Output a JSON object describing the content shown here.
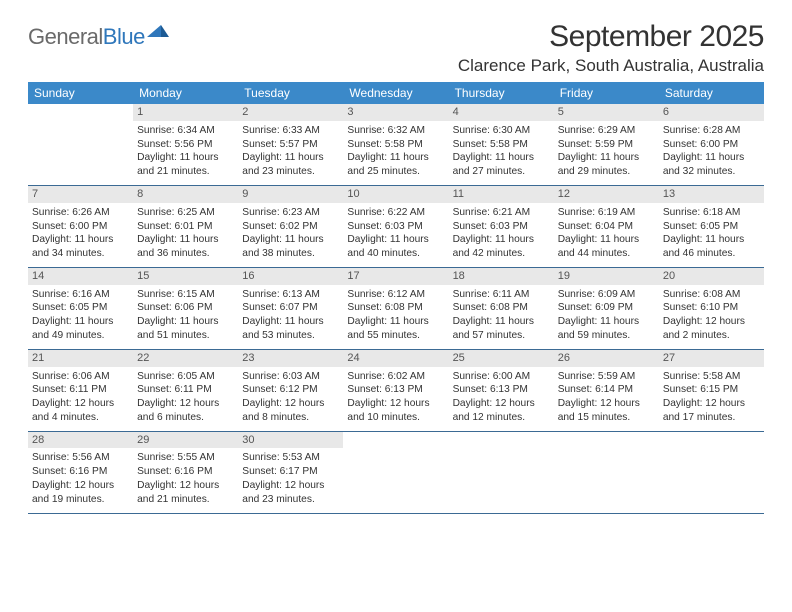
{
  "logo": {
    "text1": "General",
    "text2": "Blue"
  },
  "title": "September 2025",
  "location": "Clarence Park, South Australia, Australia",
  "weekdays": [
    "Sunday",
    "Monday",
    "Tuesday",
    "Wednesday",
    "Thursday",
    "Friday",
    "Saturday"
  ],
  "colors": {
    "header_bg": "#3b89c9",
    "header_text": "#ffffff",
    "daynum_bg": "#e8e8e8",
    "border": "#3b6a94",
    "body_text": "#333333",
    "logo_gray": "#6a6a6a",
    "logo_blue": "#2f77bb"
  },
  "weeks": [
    [
      {
        "num": "",
        "sunrise": "",
        "sunset": "",
        "daylight1": "",
        "daylight2": ""
      },
      {
        "num": "1",
        "sunrise": "Sunrise: 6:34 AM",
        "sunset": "Sunset: 5:56 PM",
        "daylight1": "Daylight: 11 hours",
        "daylight2": "and 21 minutes."
      },
      {
        "num": "2",
        "sunrise": "Sunrise: 6:33 AM",
        "sunset": "Sunset: 5:57 PM",
        "daylight1": "Daylight: 11 hours",
        "daylight2": "and 23 minutes."
      },
      {
        "num": "3",
        "sunrise": "Sunrise: 6:32 AM",
        "sunset": "Sunset: 5:58 PM",
        "daylight1": "Daylight: 11 hours",
        "daylight2": "and 25 minutes."
      },
      {
        "num": "4",
        "sunrise": "Sunrise: 6:30 AM",
        "sunset": "Sunset: 5:58 PM",
        "daylight1": "Daylight: 11 hours",
        "daylight2": "and 27 minutes."
      },
      {
        "num": "5",
        "sunrise": "Sunrise: 6:29 AM",
        "sunset": "Sunset: 5:59 PM",
        "daylight1": "Daylight: 11 hours",
        "daylight2": "and 29 minutes."
      },
      {
        "num": "6",
        "sunrise": "Sunrise: 6:28 AM",
        "sunset": "Sunset: 6:00 PM",
        "daylight1": "Daylight: 11 hours",
        "daylight2": "and 32 minutes."
      }
    ],
    [
      {
        "num": "7",
        "sunrise": "Sunrise: 6:26 AM",
        "sunset": "Sunset: 6:00 PM",
        "daylight1": "Daylight: 11 hours",
        "daylight2": "and 34 minutes."
      },
      {
        "num": "8",
        "sunrise": "Sunrise: 6:25 AM",
        "sunset": "Sunset: 6:01 PM",
        "daylight1": "Daylight: 11 hours",
        "daylight2": "and 36 minutes."
      },
      {
        "num": "9",
        "sunrise": "Sunrise: 6:23 AM",
        "sunset": "Sunset: 6:02 PM",
        "daylight1": "Daylight: 11 hours",
        "daylight2": "and 38 minutes."
      },
      {
        "num": "10",
        "sunrise": "Sunrise: 6:22 AM",
        "sunset": "Sunset: 6:03 PM",
        "daylight1": "Daylight: 11 hours",
        "daylight2": "and 40 minutes."
      },
      {
        "num": "11",
        "sunrise": "Sunrise: 6:21 AM",
        "sunset": "Sunset: 6:03 PM",
        "daylight1": "Daylight: 11 hours",
        "daylight2": "and 42 minutes."
      },
      {
        "num": "12",
        "sunrise": "Sunrise: 6:19 AM",
        "sunset": "Sunset: 6:04 PM",
        "daylight1": "Daylight: 11 hours",
        "daylight2": "and 44 minutes."
      },
      {
        "num": "13",
        "sunrise": "Sunrise: 6:18 AM",
        "sunset": "Sunset: 6:05 PM",
        "daylight1": "Daylight: 11 hours",
        "daylight2": "and 46 minutes."
      }
    ],
    [
      {
        "num": "14",
        "sunrise": "Sunrise: 6:16 AM",
        "sunset": "Sunset: 6:05 PM",
        "daylight1": "Daylight: 11 hours",
        "daylight2": "and 49 minutes."
      },
      {
        "num": "15",
        "sunrise": "Sunrise: 6:15 AM",
        "sunset": "Sunset: 6:06 PM",
        "daylight1": "Daylight: 11 hours",
        "daylight2": "and 51 minutes."
      },
      {
        "num": "16",
        "sunrise": "Sunrise: 6:13 AM",
        "sunset": "Sunset: 6:07 PM",
        "daylight1": "Daylight: 11 hours",
        "daylight2": "and 53 minutes."
      },
      {
        "num": "17",
        "sunrise": "Sunrise: 6:12 AM",
        "sunset": "Sunset: 6:08 PM",
        "daylight1": "Daylight: 11 hours",
        "daylight2": "and 55 minutes."
      },
      {
        "num": "18",
        "sunrise": "Sunrise: 6:11 AM",
        "sunset": "Sunset: 6:08 PM",
        "daylight1": "Daylight: 11 hours",
        "daylight2": "and 57 minutes."
      },
      {
        "num": "19",
        "sunrise": "Sunrise: 6:09 AM",
        "sunset": "Sunset: 6:09 PM",
        "daylight1": "Daylight: 11 hours",
        "daylight2": "and 59 minutes."
      },
      {
        "num": "20",
        "sunrise": "Sunrise: 6:08 AM",
        "sunset": "Sunset: 6:10 PM",
        "daylight1": "Daylight: 12 hours",
        "daylight2": "and 2 minutes."
      }
    ],
    [
      {
        "num": "21",
        "sunrise": "Sunrise: 6:06 AM",
        "sunset": "Sunset: 6:11 PM",
        "daylight1": "Daylight: 12 hours",
        "daylight2": "and 4 minutes."
      },
      {
        "num": "22",
        "sunrise": "Sunrise: 6:05 AM",
        "sunset": "Sunset: 6:11 PM",
        "daylight1": "Daylight: 12 hours",
        "daylight2": "and 6 minutes."
      },
      {
        "num": "23",
        "sunrise": "Sunrise: 6:03 AM",
        "sunset": "Sunset: 6:12 PM",
        "daylight1": "Daylight: 12 hours",
        "daylight2": "and 8 minutes."
      },
      {
        "num": "24",
        "sunrise": "Sunrise: 6:02 AM",
        "sunset": "Sunset: 6:13 PM",
        "daylight1": "Daylight: 12 hours",
        "daylight2": "and 10 minutes."
      },
      {
        "num": "25",
        "sunrise": "Sunrise: 6:00 AM",
        "sunset": "Sunset: 6:13 PM",
        "daylight1": "Daylight: 12 hours",
        "daylight2": "and 12 minutes."
      },
      {
        "num": "26",
        "sunrise": "Sunrise: 5:59 AM",
        "sunset": "Sunset: 6:14 PM",
        "daylight1": "Daylight: 12 hours",
        "daylight2": "and 15 minutes."
      },
      {
        "num": "27",
        "sunrise": "Sunrise: 5:58 AM",
        "sunset": "Sunset: 6:15 PM",
        "daylight1": "Daylight: 12 hours",
        "daylight2": "and 17 minutes."
      }
    ],
    [
      {
        "num": "28",
        "sunrise": "Sunrise: 5:56 AM",
        "sunset": "Sunset: 6:16 PM",
        "daylight1": "Daylight: 12 hours",
        "daylight2": "and 19 minutes."
      },
      {
        "num": "29",
        "sunrise": "Sunrise: 5:55 AM",
        "sunset": "Sunset: 6:16 PM",
        "daylight1": "Daylight: 12 hours",
        "daylight2": "and 21 minutes."
      },
      {
        "num": "30",
        "sunrise": "Sunrise: 5:53 AM",
        "sunset": "Sunset: 6:17 PM",
        "daylight1": "Daylight: 12 hours",
        "daylight2": "and 23 minutes."
      },
      {
        "num": "",
        "sunrise": "",
        "sunset": "",
        "daylight1": "",
        "daylight2": ""
      },
      {
        "num": "",
        "sunrise": "",
        "sunset": "",
        "daylight1": "",
        "daylight2": ""
      },
      {
        "num": "",
        "sunrise": "",
        "sunset": "",
        "daylight1": "",
        "daylight2": ""
      },
      {
        "num": "",
        "sunrise": "",
        "sunset": "",
        "daylight1": "",
        "daylight2": ""
      }
    ]
  ]
}
